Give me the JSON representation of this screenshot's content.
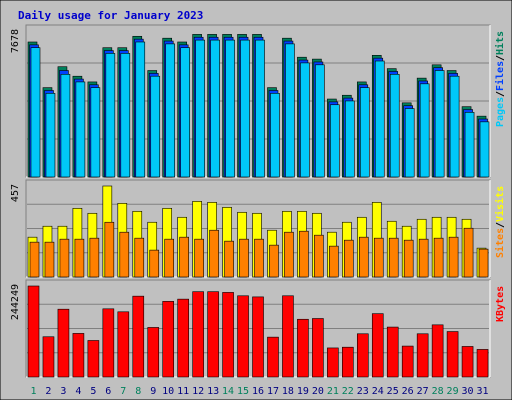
{
  "title": "Daily usage for January 2023",
  "colors": {
    "background": "#c0c0c0",
    "title": "#0000cc",
    "hits": "#00805c",
    "files": "#0040ff",
    "pages": "#00c8f8",
    "visits": "#ffff00",
    "sites": "#ff8000",
    "kbytes": "#ff0000",
    "weekend_label": "#00805c",
    "weekday_label": "#000080"
  },
  "chart_data": {
    "type": "bar",
    "title": "Daily usage for January 2023",
    "categories": [
      "1",
      "2",
      "3",
      "4",
      "5",
      "6",
      "7",
      "8",
      "9",
      "10",
      "11",
      "12",
      "13",
      "14",
      "15",
      "16",
      "17",
      "18",
      "19",
      "20",
      "21",
      "22",
      "23",
      "24",
      "25",
      "26",
      "27",
      "28",
      "29",
      "30",
      "31"
    ],
    "weekend_days": [
      "1",
      "7",
      "8",
      "14",
      "15",
      "21",
      "22",
      "28",
      "29"
    ],
    "panels": [
      {
        "name": "hits-files-pages",
        "ymax_label": "7678",
        "ymax": 7678,
        "legend": [
          "Pages",
          "Files",
          "Hits"
        ],
        "series": [
          {
            "name": "Hits",
            "values": [
              7100,
              4700,
              5800,
              5300,
              5000,
              6800,
              6800,
              7400,
              5600,
              7300,
              7100,
              7500,
              7500,
              7500,
              7500,
              7500,
              4700,
              7300,
              6300,
              6200,
              4100,
              4300,
              5000,
              6400,
              5700,
              3900,
              5200,
              5900,
              5600,
              3700,
              3200
            ]
          },
          {
            "name": "Files",
            "values": [
              6950,
              4550,
              5600,
              5150,
              4850,
              6650,
              6650,
              7250,
              5450,
              7150,
              6950,
              7350,
              7350,
              7350,
              7350,
              7350,
              4550,
              7150,
              6150,
              6050,
              3950,
              4150,
              4850,
              6250,
              5550,
              3750,
              5050,
              5750,
              5450,
              3550,
              3050
            ]
          },
          {
            "name": "Pages",
            "values": [
              6800,
              4400,
              5400,
              5000,
              4700,
              6500,
              6500,
              7100,
              5300,
              7000,
              6800,
              7200,
              7200,
              7200,
              7200,
              7200,
              4400,
              7000,
              6000,
              5900,
              3800,
              4000,
              4700,
              6100,
              5400,
              3600,
              4900,
              5600,
              5300,
              3400,
              2900
            ]
          }
        ]
      },
      {
        "name": "visits-sites",
        "ymax_label": "457",
        "ymax": 457,
        "legend": [
          "Sites",
          "Visits"
        ],
        "series": [
          {
            "name": "Visits",
            "values": [
              200,
              255,
              255,
              345,
              320,
              457,
              370,
              330,
              275,
              345,
              300,
              380,
              375,
              350,
              325,
              320,
              235,
              330,
              330,
              320,
              225,
              275,
              300,
              375,
              280,
              255,
              290,
              300,
              300,
              290,
              145
            ]
          },
          {
            "name": "Sites",
            "values": [
              175,
              175,
              190,
              190,
              195,
              275,
              225,
              195,
              135,
              190,
              200,
              190,
              235,
              180,
              190,
              190,
              160,
              225,
              230,
              210,
              155,
              185,
              200,
              195,
              195,
              185,
              190,
              195,
              200,
              245,
              140
            ]
          }
        ]
      },
      {
        "name": "kbytes",
        "ymax_label": "244249",
        "ymax": 244249,
        "legend": [
          "KBytes"
        ],
        "series": [
          {
            "name": "KBytes",
            "values": [
              244249,
              108000,
              182000,
              117000,
              98000,
              183000,
              175000,
              217000,
              133000,
              203000,
              209000,
              229000,
              229000,
              227000,
              218000,
              215000,
              107000,
              218000,
              155000,
              157000,
              78000,
              80000,
              116000,
              170000,
              134000,
              83000,
              116000,
              140000,
              122000,
              82000,
              74000
            ]
          }
        ]
      }
    ]
  }
}
